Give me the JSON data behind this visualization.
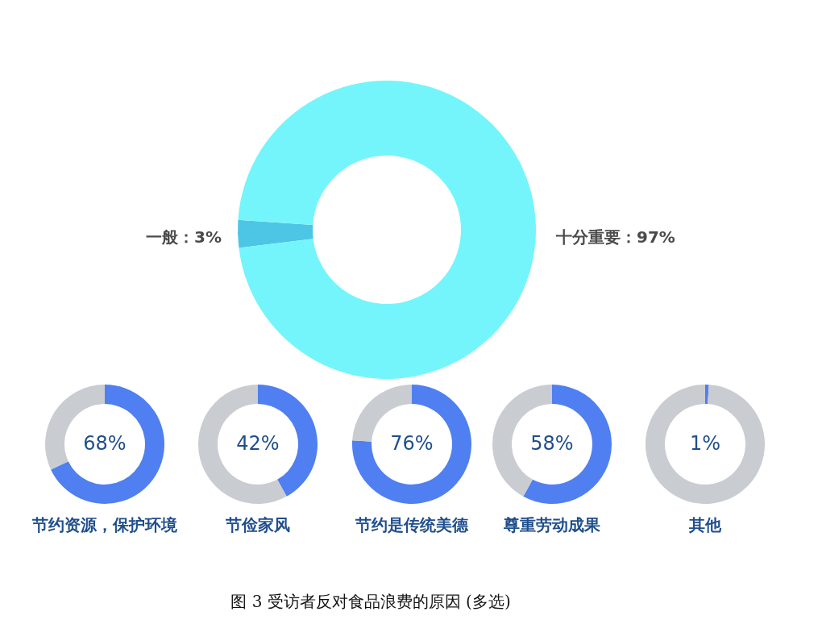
{
  "chart_data": [
    {
      "type": "donut",
      "categories": [
        "一般",
        "十分重要"
      ],
      "values": [
        3,
        97
      ],
      "colors": [
        "#4dc6e6",
        "#74f5fb"
      ],
      "value_labels": [
        "3%",
        "97%"
      ],
      "annotations": [
        "图 3 受访者反对食品浪费的原因 (多选)"
      ]
    },
    {
      "type": "donut",
      "title": "节约资源，保护环境",
      "categories": [
        null,
        null
      ],
      "values": [
        68,
        32
      ],
      "colors": [
        "#4f7ff0",
        "#c9ccd1"
      ],
      "value_labels": [
        "68%",
        null
      ]
    },
    {
      "type": "donut",
      "title": "节俭家风",
      "categories": [
        null,
        null
      ],
      "values": [
        42,
        58
      ],
      "colors": [
        "#4f7ff0",
        "#c9ccd1"
      ],
      "value_labels": [
        "42%",
        null
      ]
    },
    {
      "type": "donut",
      "title": "节约是传统美德",
      "categories": [
        null,
        null
      ],
      "values": [
        76,
        24
      ],
      "colors": [
        "#4f7ff0",
        "#c9ccd1"
      ],
      "value_labels": [
        "76%",
        null
      ]
    },
    {
      "type": "donut",
      "title": "尊重劳动成果",
      "categories": [
        null,
        null
      ],
      "values": [
        58,
        42
      ],
      "colors": [
        "#4f7ff0",
        "#c9ccd1"
      ],
      "value_labels": [
        "58%",
        null
      ]
    },
    {
      "type": "donut",
      "title": "其他",
      "categories": [
        null,
        null
      ],
      "values": [
        1,
        99
      ],
      "colors": [
        "#4f7ff0",
        "#c9ccd1"
      ],
      "value_labels": [
        "1%",
        null
      ]
    }
  ]
}
